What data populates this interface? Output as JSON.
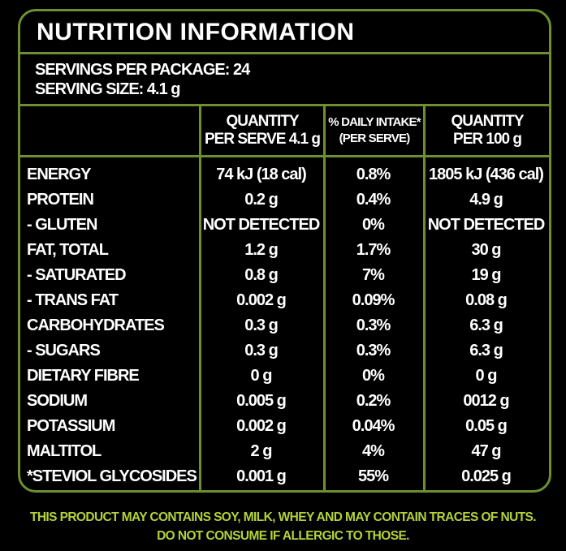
{
  "title": "NUTRITION INFORMATION",
  "servings_per_package": "SERVINGS PER PACKAGE: 24",
  "serving_size": "SERVING SIZE: 4.1 g",
  "headers": [
    {
      "line1": "",
      "line2": ""
    },
    {
      "line1": "QUANTITY",
      "line2": "PER SERVE 4.1 g"
    },
    {
      "line1": "% DAILY INTAKE*",
      "line2": "(PER SERVE)"
    },
    {
      "line1": "QUANTITY",
      "line2": "PER 100 g"
    }
  ],
  "rows": [
    [
      "ENERGY",
      "74 kJ (18 cal)",
      "0.8%",
      "1805 kJ (436 cal)"
    ],
    [
      "PROTEIN",
      "0.2 g",
      "0.4%",
      "4.9 g"
    ],
    [
      "- GLUTEN",
      "NOT DETECTED",
      "0%",
      "NOT DETECTED"
    ],
    [
      "FAT, TOTAL",
      "1.2 g",
      "1.7%",
      "30 g"
    ],
    [
      "- SATURATED",
      "0.8 g",
      "7%",
      "19 g"
    ],
    [
      "- TRANS FAT",
      "0.002 g",
      "0.09%",
      "0.08 g"
    ],
    [
      "CARBOHYDRATES",
      "0.3 g",
      "0.3%",
      "6.3 g"
    ],
    [
      "- SUGARS",
      "0.3 g",
      "0.3%",
      "6.3 g"
    ],
    [
      "DIETARY FIBRE",
      "0 g",
      "0%",
      "0 g"
    ],
    [
      "SODIUM",
      "0.005 g",
      "0.2%",
      "0012 g"
    ],
    [
      "POTASSIUM",
      "0.002 g",
      "0.04%",
      "0.05 g"
    ],
    [
      "MALTITOL",
      "2 g",
      "4%",
      "47 g"
    ],
    [
      "*STEVIOL GLYCOSIDES",
      "0.001 g",
      "55%",
      "0.025 g"
    ]
  ],
  "footer": {
    "line1": "THIS PRODUCT MAY CONTAINS SOY, MILK, WHEY AND MAY CONTAIN TRACES OF NUTS.",
    "line2": "DO NOT CONSUME IF ALLERGIC TO THOSE."
  },
  "colors": {
    "border": "#6e8f30",
    "footer_text": "#b3d23a",
    "background": "#000000"
  }
}
